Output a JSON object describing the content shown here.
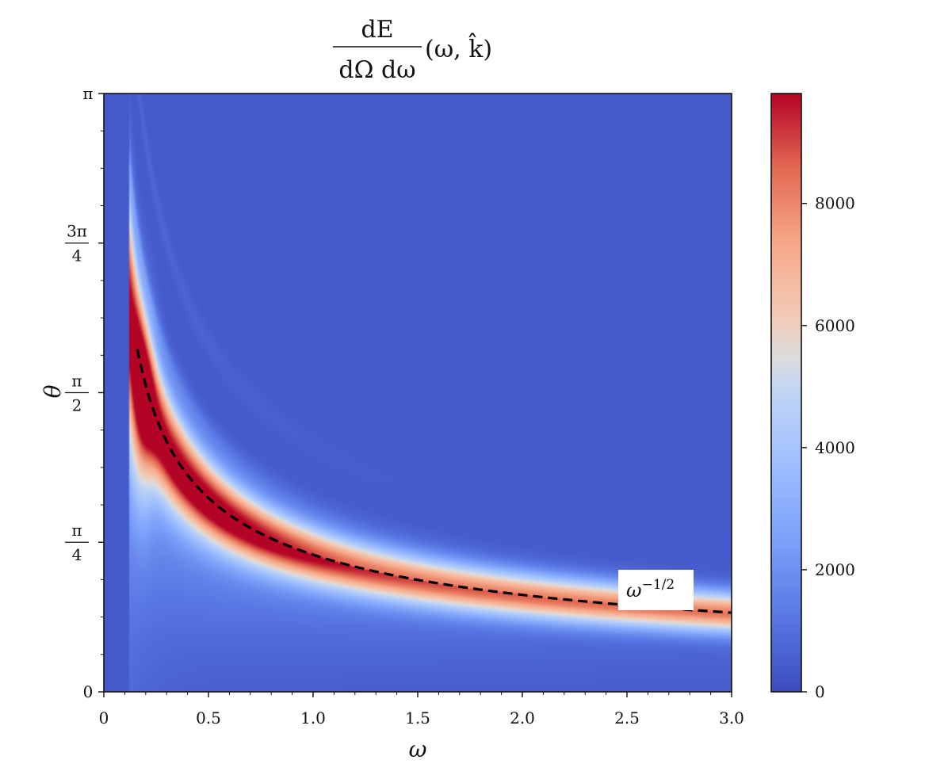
{
  "chart_data": {
    "type": "heatmap",
    "title": {
      "numerator": "dE",
      "denominator": "dΩ dω",
      "suffix": "(ω, k̂)"
    },
    "xlabel": "ω",
    "ylabel": "θ",
    "xlim": [
      0,
      3.0
    ],
    "ylim": [
      0,
      3.14159
    ],
    "x_ticks": [
      {
        "value": 0,
        "label": "0"
      },
      {
        "value": 0.5,
        "label": "0.5"
      },
      {
        "value": 1.0,
        "label": "1.0"
      },
      {
        "value": 1.5,
        "label": "1.5"
      },
      {
        "value": 2.0,
        "label": "2.0"
      },
      {
        "value": 2.5,
        "label": "2.5"
      },
      {
        "value": 3.0,
        "label": "3.0"
      }
    ],
    "y_ticks": [
      {
        "value": 0,
        "label": "0"
      },
      {
        "value": 0.7854,
        "num": "π",
        "den": "4"
      },
      {
        "value": 1.5708,
        "num": "π",
        "den": "2"
      },
      {
        "value": 2.3562,
        "num": "3π",
        "den": "4"
      },
      {
        "value": 3.14159,
        "label": "π"
      }
    ],
    "colorbar": {
      "colormap": "coolwarm",
      "min": 0,
      "max": 9800,
      "ticks": [
        0,
        2000,
        4000,
        6000,
        8000
      ],
      "tick_labels": [
        "0",
        "2000",
        "4000",
        "6000",
        "8000"
      ]
    },
    "field": {
      "description_of_peak_ridge": "theta ≈ 0.72·ω^(-1/2)",
      "ridge_coefficient": 0.72,
      "peak_value": 9800,
      "background_value": 400
    },
    "fit_curve": {
      "formula": "θ = 0.72 ω^(-1/2)",
      "x_start": 0.16,
      "x_end": 3.0,
      "style": "dashed",
      "color": "#000000"
    },
    "annotation": {
      "text_base": "ω",
      "text_exp": "−1/2"
    },
    "grid": false
  }
}
